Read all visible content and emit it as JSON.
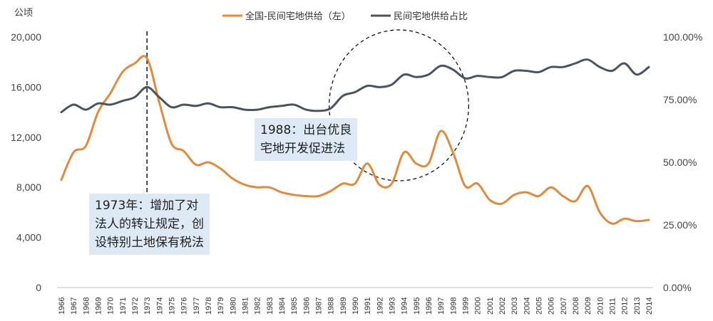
{
  "chart_data": {
    "type": "line",
    "left_unit": "公顷",
    "x": [
      "1966",
      "1967",
      "1968",
      "1969",
      "1970",
      "1971",
      "1972",
      "1973",
      "1974",
      "1975",
      "1976",
      "1977",
      "1978",
      "1979",
      "1980",
      "1981",
      "1982",
      "1983",
      "1984",
      "1985",
      "1986",
      "1987",
      "1988",
      "1989",
      "1990",
      "1991",
      "1992",
      "1993",
      "1994",
      "1995",
      "1996",
      "1997",
      "1998",
      "1999",
      "2000",
      "2001",
      "2002",
      "2003",
      "2004",
      "2005",
      "2006",
      "2007",
      "2008",
      "2009",
      "2010",
      "2011",
      "2012",
      "2013",
      "2014"
    ],
    "y_left_ticks": [
      "0",
      "4,000",
      "8,000",
      "12,000",
      "16,000",
      "20,000"
    ],
    "y_left_range": [
      0,
      20000
    ],
    "y_right_ticks": [
      "0.00%",
      "25.00%",
      "50.00%",
      "75.00%",
      "100.00%"
    ],
    "y_right_range": [
      0,
      100
    ],
    "series": [
      {
        "name": "全国-民间宅地供给（左）",
        "axis": "left",
        "color": "#e08a3c",
        "values": [
          8600,
          10800,
          11300,
          14000,
          15500,
          17200,
          17900,
          18300,
          14800,
          11500,
          10900,
          9800,
          10000,
          9500,
          8700,
          8200,
          8000,
          8000,
          7600,
          7400,
          7300,
          7300,
          7700,
          8300,
          8300,
          9900,
          8200,
          8300,
          10800,
          9900,
          9900,
          12500,
          10800,
          8100,
          8300,
          7000,
          6700,
          7400,
          7600,
          7300,
          8000,
          7300,
          6900,
          8100,
          6000,
          5100,
          5500,
          5300,
          5400
        ]
      },
      {
        "name": "民间宅地供给占比",
        "axis": "right",
        "color": "#4a5360",
        "values": [
          70.0,
          73.0,
          71.0,
          73.5,
          73.0,
          74.5,
          76.0,
          80.0,
          76.0,
          72.0,
          73.0,
          72.5,
          73.5,
          72.0,
          72.0,
          71.0,
          71.0,
          72.0,
          72.5,
          73.0,
          71.0,
          70.5,
          71.5,
          76.5,
          78.0,
          80.5,
          80.0,
          81.0,
          85.0,
          84.0,
          85.0,
          88.5,
          87.0,
          83.5,
          84.5,
          84.0,
          84.0,
          86.5,
          86.5,
          86.0,
          88.0,
          88.0,
          89.5,
          91.0,
          88.0,
          86.5,
          89.5,
          85.0,
          88.0
        ]
      }
    ],
    "annotations": [
      {
        "lines": [
          "1973年：增加了对",
          "法人的转让规定，创",
          "设特别土地保有税法"
        ],
        "year": "1973"
      },
      {
        "lines": [
          "1988：出台优良",
          "宅地开发促进法"
        ],
        "year": "1988"
      }
    ],
    "legend_position": "top-center",
    "grid": false
  }
}
